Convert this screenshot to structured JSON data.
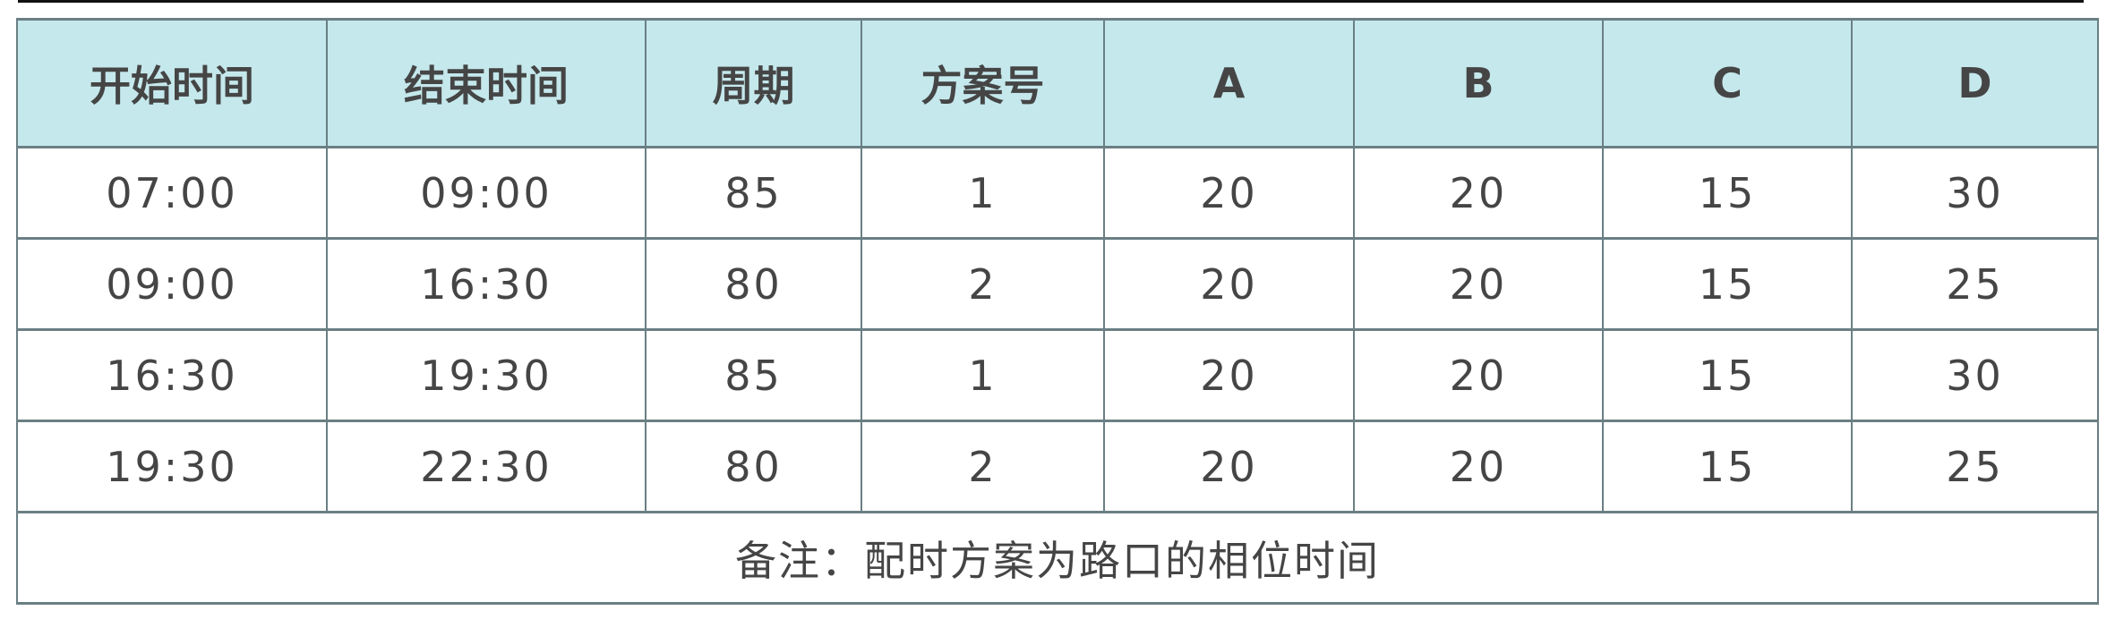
{
  "headers": [
    "开始时间",
    "结束时间",
    "周期",
    "方案号",
    "A",
    "B",
    "C",
    "D"
  ],
  "rows": [
    [
      "07:00",
      "09:00",
      "85",
      "1",
      "20",
      "20",
      "15",
      "30"
    ],
    [
      "09:00",
      "16:30",
      "80",
      "2",
      "20",
      "20",
      "15",
      "25"
    ],
    [
      "16:30",
      "19:30",
      "85",
      "1",
      "20",
      "20",
      "15",
      "30"
    ],
    [
      "19:30",
      "22:30",
      "80",
      "2",
      "20",
      "20",
      "15",
      "25"
    ]
  ],
  "note": "备注：配时方案为路口的相位时间",
  "colors": {
    "header_bg": "#c5e8ec",
    "border": "#6a7f84",
    "text": "#454545"
  }
}
